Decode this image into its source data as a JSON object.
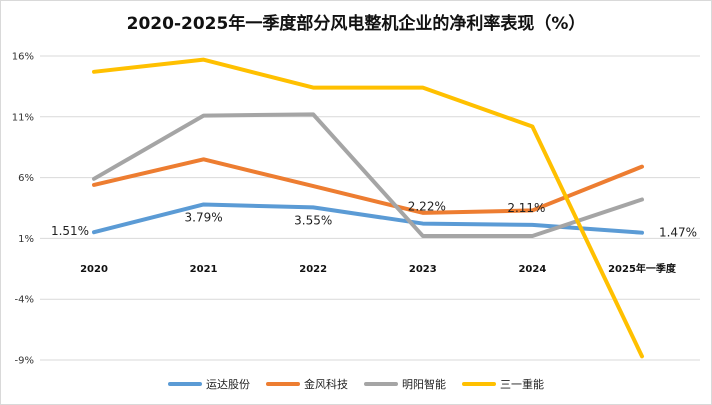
{
  "chart_data": {
    "type": "line",
    "title": "2020-2025年一季度部分风电整机企业的净利率表现（%）",
    "categories": [
      "2020",
      "2021",
      "2022",
      "2023",
      "2024",
      "2025年一季度"
    ],
    "y_ticks": [
      "16%",
      "11%",
      "6%",
      "1%",
      "-4%",
      "-9%"
    ],
    "ylim": [
      -9,
      16
    ],
    "y_unit": "%",
    "grid": true,
    "legend_position": "bottom",
    "series": [
      {
        "name": "运达股份",
        "color": "#5b9bd5",
        "values": [
          1.51,
          3.79,
          3.55,
          2.22,
          2.11,
          1.47
        ]
      },
      {
        "name": "金风科技",
        "color": "#ed7d31",
        "values": [
          5.4,
          7.5,
          5.3,
          3.1,
          3.3,
          6.9
        ]
      },
      {
        "name": "明阳智能",
        "color": "#a5a5a5",
        "values": [
          5.9,
          11.1,
          11.2,
          1.2,
          1.2,
          4.2
        ]
      },
      {
        "name": "三一重能",
        "color": "#ffc000",
        "values": [
          14.7,
          15.7,
          13.4,
          13.4,
          10.2,
          -8.7
        ]
      }
    ],
    "data_labels": [
      {
        "series": "运达股份",
        "index": 0,
        "text": "1.51%"
      },
      {
        "series": "运达股份",
        "index": 1,
        "text": "3.79%"
      },
      {
        "series": "运达股份",
        "index": 2,
        "text": "3.55%"
      },
      {
        "series": "运达股份",
        "index": 3,
        "text": "2.22%"
      },
      {
        "series": "运达股份",
        "index": 4,
        "text": "2.11%"
      },
      {
        "series": "运达股份",
        "index": 5,
        "text": "1.47%"
      }
    ]
  }
}
